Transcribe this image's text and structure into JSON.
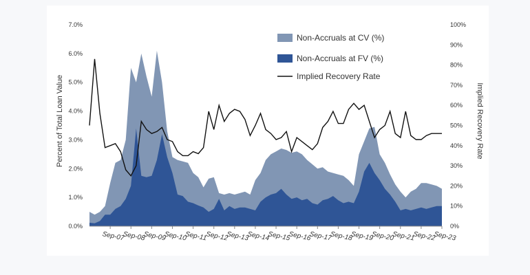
{
  "chart_data": {
    "type": "area",
    "title": "",
    "xlabel": "",
    "ylabel": "Percent of Total Loan Value",
    "y2label": "Implied Recovery Rate",
    "ylim": [
      0,
      7
    ],
    "y2lim": [
      0,
      100
    ],
    "y_ticks": [
      "0.0%",
      "1.0%",
      "2.0%",
      "3.0%",
      "4.0%",
      "5.0%",
      "6.0%",
      "7.0%"
    ],
    "y2_ticks": [
      "0%",
      "10%",
      "20%",
      "30%",
      "40%",
      "50%",
      "60%",
      "70%",
      "80%",
      "90%",
      "100%"
    ],
    "x_ticks": [
      "Sep-07",
      "Sep-08",
      "Sep-09",
      "Sep-10",
      "Sep-11",
      "Sep-12",
      "Sep-13",
      "Sep-14",
      "Sep-15",
      "Sep-16",
      "Sep-17",
      "Sep-18",
      "Sep-19",
      "Sep-20",
      "Sep-21",
      "Sep-22",
      "Sep-23"
    ],
    "x": [
      "Sep-06",
      "Dec-06",
      "Mar-07",
      "Jun-07",
      "Sep-07",
      "Dec-07",
      "Mar-08",
      "Jun-08",
      "Sep-08",
      "Dec-08",
      "Mar-09",
      "Jun-09",
      "Sep-09",
      "Dec-09",
      "Mar-10",
      "Jun-10",
      "Sep-10",
      "Dec-10",
      "Mar-11",
      "Jun-11",
      "Sep-11",
      "Dec-11",
      "Mar-12",
      "Jun-12",
      "Sep-12",
      "Dec-12",
      "Mar-13",
      "Jun-13",
      "Sep-13",
      "Dec-13",
      "Mar-14",
      "Jun-14",
      "Sep-14",
      "Dec-14",
      "Mar-15",
      "Jun-15",
      "Sep-15",
      "Dec-15",
      "Mar-16",
      "Jun-16",
      "Sep-16",
      "Dec-16",
      "Mar-17",
      "Jun-17",
      "Sep-17",
      "Dec-17",
      "Mar-18",
      "Jun-18",
      "Sep-18",
      "Dec-18",
      "Mar-19",
      "Jun-19",
      "Sep-19",
      "Dec-19",
      "Mar-20",
      "Jun-20",
      "Sep-20",
      "Dec-20",
      "Mar-21",
      "Jun-21",
      "Sep-21",
      "Dec-21",
      "Mar-22",
      "Jun-22",
      "Sep-22",
      "Dec-22",
      "Mar-23",
      "Jun-23",
      "Sep-23"
    ],
    "legend_position": "top-right",
    "grid": false,
    "series": [
      {
        "name": "Non-Accruals at CV (%)",
        "type": "area",
        "axis": "left",
        "color": "#8196b4",
        "values": [
          0.5,
          0.4,
          0.5,
          0.7,
          1.5,
          2.2,
          2.3,
          3.0,
          5.5,
          5.0,
          6.0,
          5.2,
          4.5,
          6.1,
          5.0,
          3.3,
          2.4,
          2.3,
          2.25,
          2.2,
          1.85,
          1.7,
          1.35,
          1.65,
          1.7,
          1.15,
          1.1,
          1.15,
          1.1,
          1.15,
          1.2,
          1.1,
          1.6,
          1.85,
          2.3,
          2.5,
          2.6,
          2.7,
          2.65,
          2.55,
          2.6,
          2.5,
          2.3,
          2.15,
          2.0,
          2.05,
          1.9,
          1.85,
          1.8,
          1.75,
          1.6,
          1.4,
          2.5,
          2.95,
          3.4,
          3.45,
          2.5,
          2.2,
          1.8,
          1.45,
          1.2,
          1.0,
          1.2,
          1.3,
          1.5,
          1.5,
          1.45,
          1.4,
          1.3
        ]
      },
      {
        "name": "Non-Accruals at FV (%)",
        "type": "area",
        "axis": "left",
        "color": "#2f5596",
        "values": [
          0.12,
          0.1,
          0.18,
          0.4,
          0.4,
          0.6,
          0.7,
          0.95,
          1.4,
          3.4,
          1.75,
          1.7,
          1.75,
          2.3,
          3.2,
          2.4,
          1.85,
          1.1,
          1.05,
          0.85,
          0.8,
          0.72,
          0.65,
          0.5,
          0.6,
          0.95,
          0.55,
          0.7,
          0.6,
          0.65,
          0.65,
          0.6,
          0.55,
          0.85,
          1.0,
          1.1,
          1.15,
          1.3,
          1.1,
          0.95,
          1.0,
          0.9,
          0.95,
          0.8,
          0.75,
          0.9,
          0.95,
          1.05,
          0.9,
          0.8,
          0.85,
          0.8,
          1.2,
          1.9,
          2.2,
          1.85,
          1.6,
          1.3,
          1.1,
          0.85,
          0.55,
          0.6,
          0.55,
          0.6,
          0.65,
          0.6,
          0.65,
          0.7,
          0.7
        ]
      },
      {
        "name": "Implied Recovery Rate",
        "type": "line",
        "axis": "right",
        "color": "#111111",
        "values": [
          50,
          83,
          56,
          39,
          40,
          41,
          37,
          28,
          25,
          30,
          52,
          48,
          46,
          47,
          49,
          43,
          42,
          37,
          35,
          35,
          37,
          36,
          39,
          57,
          48,
          60,
          52,
          56,
          58,
          57,
          53,
          45,
          50,
          56,
          48,
          46,
          43,
          44,
          47,
          37,
          44,
          42,
          40,
          38,
          41,
          49,
          52,
          57,
          51,
          51,
          58,
          61,
          58,
          60,
          52,
          44,
          48,
          50,
          57,
          46,
          44,
          57,
          45,
          43,
          43,
          45,
          46,
          46,
          46
        ]
      }
    ],
    "legend": [
      {
        "label": "Non-Accruals at CV (%)",
        "symbol": "area-light"
      },
      {
        "label": "Non-Accruals at FV (%)",
        "symbol": "area-dark"
      },
      {
        "label": "Implied Recovery Rate",
        "symbol": "line"
      }
    ]
  }
}
